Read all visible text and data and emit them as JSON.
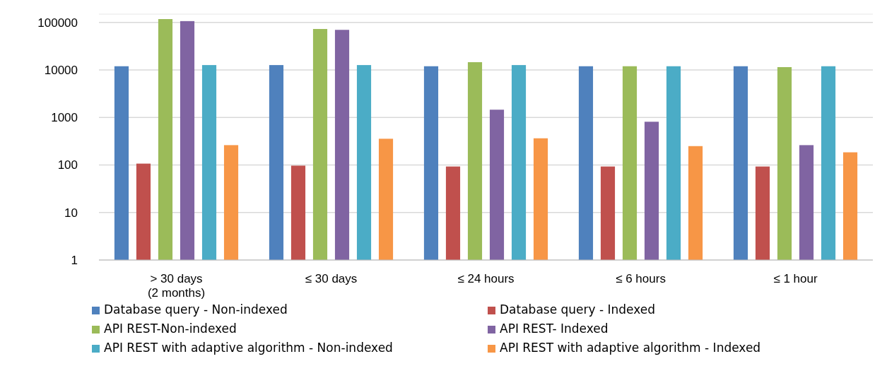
{
  "chart_data": {
    "type": "bar",
    "categories": [
      "> 30 days (2 months)",
      "≤ 30 days",
      "≤ 24 hours",
      "≤ 6 hours",
      "≤ 1 hour"
    ],
    "series": [
      {
        "name": "Database query - Non-indexed",
        "color": "#4f81bd",
        "values": [
          12000,
          12700,
          12000,
          12000,
          12000
        ]
      },
      {
        "name": "Database query - Indexed",
        "color": "#c0504d",
        "values": [
          107,
          97,
          93,
          93,
          93
        ]
      },
      {
        "name": "API REST-Non-indexed",
        "color": "#9bbb59",
        "values": [
          118000,
          73000,
          14600,
          12000,
          11500
        ]
      },
      {
        "name": "API REST- Indexed",
        "color": "#8064a2",
        "values": [
          107000,
          70000,
          1460,
          814,
          262
        ]
      },
      {
        "name": "API REST with adaptive algorithm - Non-indexed",
        "color": "#4bacc6",
        "values": [
          12700,
          12700,
          12700,
          12000,
          12000
        ]
      },
      {
        "name": "API REST with adaptive algorithm - Indexed",
        "color": "#f79646",
        "values": [
          262,
          357,
          365,
          250,
          185
        ]
      }
    ],
    "log": true,
    "ylim": [
      1,
      150000
    ],
    "yticks": [
      1,
      10,
      100,
      1000,
      10000,
      100000
    ],
    "grid": "y",
    "legend": "bottom"
  }
}
